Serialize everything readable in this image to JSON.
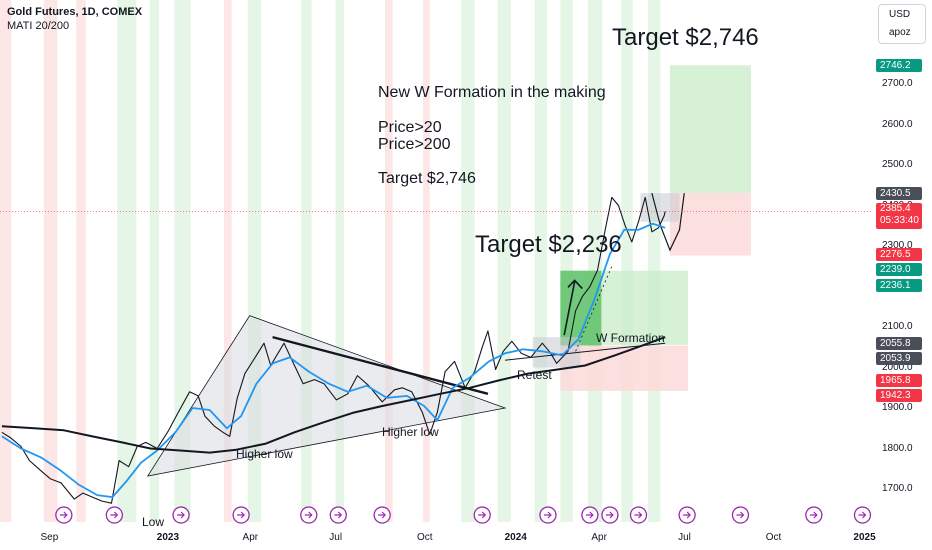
{
  "header": {
    "title": "Gold Futures, 1D, COMEX",
    "indicator": "MATI 20/200"
  },
  "top_right": {
    "currency": "USD",
    "scale_mode": "apoz"
  },
  "chart_data": {
    "type": "line",
    "title": "Gold Futures, 1D, COMEX",
    "instrument": "Gold Futures",
    "timeframe": "1D",
    "exchange": "COMEX",
    "y_axis": {
      "ylim": [
        1640,
        2860
      ],
      "ticks": [
        1700,
        1800,
        1900,
        2000,
        2100,
        2200,
        2300,
        2400,
        2500,
        2600,
        2700
      ],
      "tick_labels": [
        "1700.0",
        "1800.0",
        "1900.0",
        "2000.0",
        "2100.0",
        "",
        "2300.0",
        "2400.0",
        "2500.0",
        "2600.0",
        "2700.0"
      ],
      "side": "right"
    },
    "x_axis": {
      "start": "2022-07-10",
      "end": "2025-01-10",
      "tick_labels": [
        {
          "label": "Sep",
          "date": "2022-09-01",
          "bold": false
        },
        {
          "label": "2023",
          "date": "2023-01-01",
          "bold": true
        },
        {
          "label": "Apr",
          "date": "2023-04-01",
          "bold": false
        },
        {
          "label": "Jul",
          "date": "2023-07-01",
          "bold": false
        },
        {
          "label": "Oct",
          "date": "2023-10-01",
          "bold": false
        },
        {
          "label": "2024",
          "date": "2024-01-01",
          "bold": true
        },
        {
          "label": "Apr",
          "date": "2024-04-01",
          "bold": false
        },
        {
          "label": "Jul",
          "date": "2024-07-01",
          "bold": false
        },
        {
          "label": "Oct",
          "date": "2024-10-01",
          "bold": false
        },
        {
          "label": "2025",
          "date": "2025-01-01",
          "bold": true
        }
      ]
    },
    "series": [
      {
        "name": "Price",
        "color": "#131722",
        "points": [
          [
            "2022-07-12",
            1840
          ],
          [
            "2022-07-22",
            1825
          ],
          [
            "2022-08-01",
            1805
          ],
          [
            "2022-08-10",
            1770
          ],
          [
            "2022-08-22",
            1745
          ],
          [
            "2022-09-01",
            1725
          ],
          [
            "2022-09-12",
            1715
          ],
          [
            "2022-09-26",
            1675
          ],
          [
            "2022-10-05",
            1690
          ],
          [
            "2022-10-15",
            1680
          ],
          [
            "2022-10-25",
            1670
          ],
          [
            "2022-11-04",
            1665
          ],
          [
            "2022-11-12",
            1770
          ],
          [
            "2022-11-22",
            1755
          ],
          [
            "2022-12-01",
            1805
          ],
          [
            "2022-12-10",
            1815
          ],
          [
            "2022-12-22",
            1800
          ],
          [
            "2023-01-03",
            1845
          ],
          [
            "2023-01-12",
            1885
          ],
          [
            "2023-01-25",
            1940
          ],
          [
            "2023-02-03",
            1930
          ],
          [
            "2023-02-10",
            1880
          ],
          [
            "2023-02-20",
            1855
          ],
          [
            "2023-03-01",
            1840
          ],
          [
            "2023-03-08",
            1830
          ],
          [
            "2023-03-16",
            1925
          ],
          [
            "2023-03-24",
            1985
          ],
          [
            "2023-04-05",
            2030
          ],
          [
            "2023-04-13",
            2060
          ],
          [
            "2023-04-20",
            2005
          ],
          [
            "2023-05-04",
            2060
          ],
          [
            "2023-05-12",
            2020
          ],
          [
            "2023-05-24",
            1960
          ],
          [
            "2023-06-05",
            1970
          ],
          [
            "2023-06-15",
            1960
          ],
          [
            "2023-06-28",
            1920
          ],
          [
            "2023-07-10",
            1935
          ],
          [
            "2023-07-20",
            1980
          ],
          [
            "2023-08-01",
            1955
          ],
          [
            "2023-08-15",
            1915
          ],
          [
            "2023-08-28",
            1945
          ],
          [
            "2023-09-05",
            1950
          ],
          [
            "2023-09-15",
            1940
          ],
          [
            "2023-09-26",
            1890
          ],
          [
            "2023-10-04",
            1835
          ],
          [
            "2023-10-12",
            1890
          ],
          [
            "2023-10-20",
            1990
          ],
          [
            "2023-10-30",
            2015
          ],
          [
            "2023-11-10",
            1950
          ],
          [
            "2023-11-20",
            1990
          ],
          [
            "2023-11-28",
            2050
          ],
          [
            "2023-12-04",
            2090
          ],
          [
            "2023-12-12",
            1995
          ],
          [
            "2023-12-20",
            2040
          ],
          [
            "2023-12-29",
            2065
          ],
          [
            "2024-01-08",
            2035
          ],
          [
            "2024-01-18",
            2025
          ],
          [
            "2024-01-30",
            2060
          ],
          [
            "2024-02-08",
            2035
          ],
          [
            "2024-02-14",
            2010
          ],
          [
            "2024-02-26",
            2040
          ],
          [
            "2024-03-05",
            2140
          ],
          [
            "2024-03-12",
            2175
          ],
          [
            "2024-03-20",
            2200
          ],
          [
            "2024-03-28",
            2240
          ],
          [
            "2024-04-05",
            2340
          ],
          [
            "2024-04-12",
            2420
          ],
          [
            "2024-04-19",
            2400
          ],
          [
            "2024-04-26",
            2350
          ],
          [
            "2024-05-03",
            2310
          ],
          [
            "2024-05-10",
            2360
          ],
          [
            "2024-05-17",
            2420
          ],
          [
            "2024-05-24",
            2335
          ],
          [
            "2024-05-31",
            2345
          ],
          [
            "2024-06-06",
            2375
          ],
          [
            "2024-06-07",
            2385.4
          ]
        ]
      },
      {
        "name": "MA 20",
        "color": "#2196f3",
        "points": [
          [
            "2022-07-12",
            1830
          ],
          [
            "2022-08-01",
            1800
          ],
          [
            "2022-08-22",
            1778
          ],
          [
            "2022-09-12",
            1745
          ],
          [
            "2022-10-01",
            1710
          ],
          [
            "2022-10-20",
            1685
          ],
          [
            "2022-11-05",
            1680
          ],
          [
            "2022-11-20",
            1720
          ],
          [
            "2022-12-05",
            1765
          ],
          [
            "2022-12-22",
            1795
          ],
          [
            "2023-01-10",
            1840
          ],
          [
            "2023-01-28",
            1900
          ],
          [
            "2023-02-15",
            1895
          ],
          [
            "2023-03-05",
            1850
          ],
          [
            "2023-03-20",
            1880
          ],
          [
            "2023-04-05",
            1960
          ],
          [
            "2023-04-22",
            2010
          ],
          [
            "2023-05-10",
            2025
          ],
          [
            "2023-05-30",
            1990
          ],
          [
            "2023-06-20",
            1960
          ],
          [
            "2023-07-10",
            1940
          ],
          [
            "2023-07-30",
            1955
          ],
          [
            "2023-08-20",
            1925
          ],
          [
            "2023-09-10",
            1930
          ],
          [
            "2023-09-28",
            1905
          ],
          [
            "2023-10-12",
            1870
          ],
          [
            "2023-10-28",
            1950
          ],
          [
            "2023-11-15",
            1975
          ],
          [
            "2023-12-05",
            2015
          ],
          [
            "2023-12-22",
            2035
          ],
          [
            "2024-01-10",
            2045
          ],
          [
            "2024-01-30",
            2040
          ],
          [
            "2024-02-20",
            2030
          ],
          [
            "2024-03-08",
            2070
          ],
          [
            "2024-03-25",
            2170
          ],
          [
            "2024-04-10",
            2280
          ],
          [
            "2024-04-25",
            2340
          ],
          [
            "2024-05-10",
            2340
          ],
          [
            "2024-05-25",
            2355
          ],
          [
            "2024-06-07",
            2345
          ]
        ]
      },
      {
        "name": "MA 200",
        "color": "#131722",
        "points": [
          [
            "2022-07-12",
            1855
          ],
          [
            "2022-08-15",
            1850
          ],
          [
            "2022-09-15",
            1845
          ],
          [
            "2022-10-15",
            1830
          ],
          [
            "2022-11-15",
            1815
          ],
          [
            "2022-12-15",
            1800
          ],
          [
            "2023-01-15",
            1795
          ],
          [
            "2023-02-15",
            1790
          ],
          [
            "2023-03-15",
            1797
          ],
          [
            "2023-04-15",
            1812
          ],
          [
            "2023-05-15",
            1840
          ],
          [
            "2023-06-15",
            1865
          ],
          [
            "2023-07-15",
            1888
          ],
          [
            "2023-08-15",
            1905
          ],
          [
            "2023-09-15",
            1920
          ],
          [
            "2023-10-15",
            1935
          ],
          [
            "2023-11-15",
            1950
          ],
          [
            "2023-12-15",
            1968
          ],
          [
            "2024-01-15",
            1985
          ],
          [
            "2024-02-15",
            1995
          ],
          [
            "2024-03-15",
            2005
          ],
          [
            "2024-04-15",
            2030
          ],
          [
            "2024-05-15",
            2055
          ],
          [
            "2024-06-07",
            2075
          ]
        ]
      }
    ],
    "price_tags": [
      {
        "value": 2746.2,
        "label": "2746.2",
        "bg": "#089981",
        "fg": "#ffffff"
      },
      {
        "value": 2430.5,
        "label": "2430.5",
        "bg": "#4a4e59",
        "fg": "#ffffff"
      },
      {
        "value": 2385.4,
        "label": "2385.4",
        "sublabel": "05:33:40",
        "bg": "#f23645",
        "fg": "#ffffff"
      },
      {
        "value": 2276.5,
        "label": "2276.5",
        "bg": "#f23645",
        "fg": "#ffffff"
      },
      {
        "value": 2239.0,
        "label": "2239.0",
        "bg": "#089981",
        "fg": "#ffffff"
      },
      {
        "value": 2236.1,
        "label": "2236.1",
        "bg": "#089981",
        "fg": "#ffffff"
      },
      {
        "value": 2055.8,
        "label": "2055.8",
        "bg": "#4a4e59",
        "fg": "#ffffff"
      },
      {
        "value": 2053.9,
        "label": "2053.9",
        "bg": "#4a4e59",
        "fg": "#ffffff"
      },
      {
        "value": 1965.8,
        "label": "1965.8",
        "bg": "#f23645",
        "fg": "#ffffff"
      },
      {
        "value": 1942.3,
        "label": "1942.3",
        "bg": "#f23645",
        "fg": "#ffffff"
      }
    ],
    "annotations": {
      "note_header": "New W Formation in the making",
      "note_price20": "Price>20",
      "note_price200": "Price>200",
      "note_target": "Target $2,746",
      "big_target_top": "Target $2,746",
      "big_target_mid": "Target $2,236",
      "w_formation": "W Formation",
      "retest": "Retest",
      "higher_low_1": "Higher low",
      "higher_low_2": "Higher low",
      "low": "Low"
    },
    "colors": {
      "ma20": "#2196f3",
      "ma200": "#131722",
      "price": "#131722",
      "target_zone": "#c8ecc8",
      "stop_zone": "#fbd9d9",
      "bull_band": "#e6f6e6",
      "bear_band": "#fde6e6",
      "triangle": "#d9dbe0",
      "arrow_box": "#3bb34a"
    },
    "grid": false,
    "legend": "none"
  }
}
